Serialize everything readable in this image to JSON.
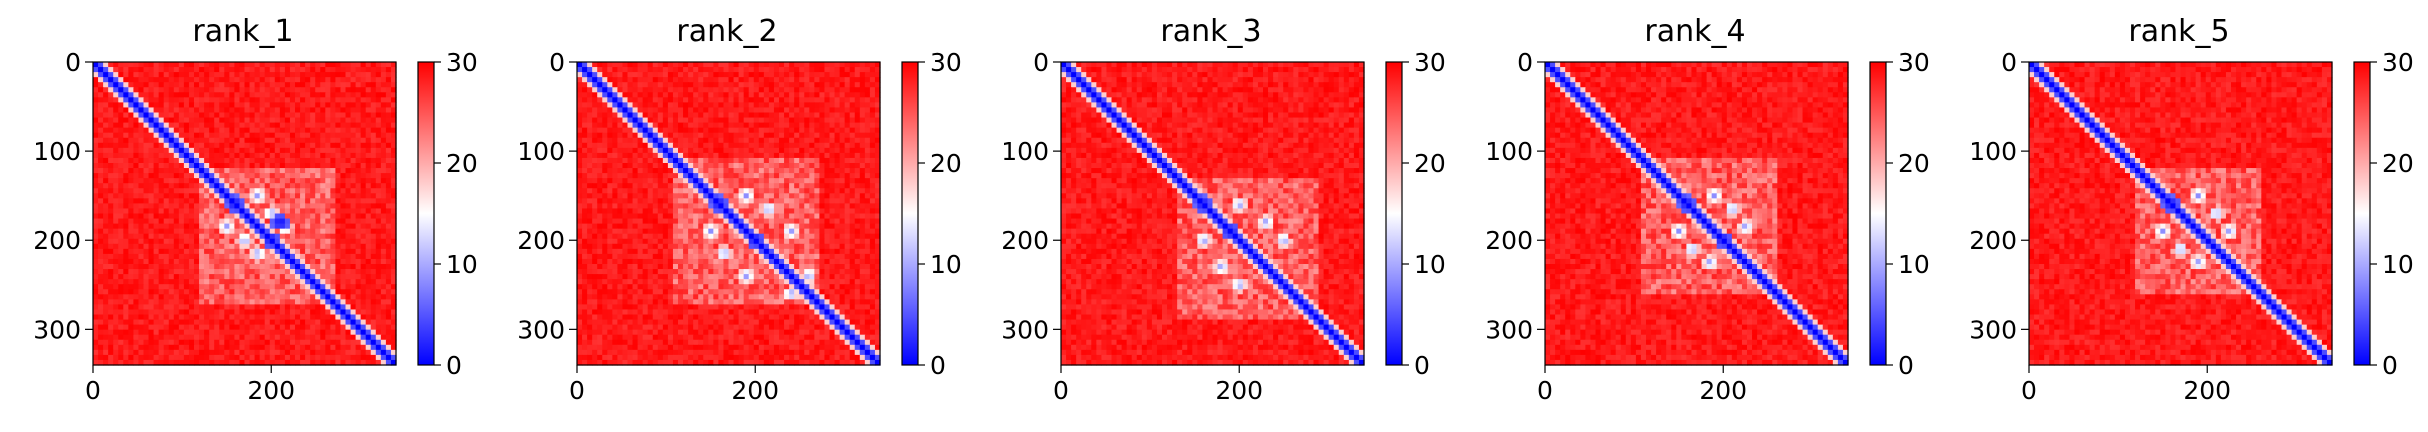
{
  "chart_data": [
    {
      "type": "heatmap",
      "title": "rank_1",
      "n_residues": 340,
      "x_ticks": [
        0,
        200
      ],
      "y_ticks": [
        0,
        100,
        200,
        300
      ],
      "colorbar": {
        "ticks": [
          0,
          10,
          20,
          30
        ],
        "vmin": 0,
        "vmax": 30,
        "colormap": "bwr"
      },
      "diagonal_value": 0,
      "background_value": 30,
      "core_region": [
        120,
        270
      ],
      "hotspots": [
        [
          160,
          160
        ],
        [
          200,
          200
        ],
        [
          180,
          210
        ]
      ],
      "off_diagonal_contacts": [
        [
          150,
          185
        ],
        [
          170,
          200
        ],
        [
          185,
          215
        ]
      ]
    },
    {
      "type": "heatmap",
      "title": "rank_2",
      "n_residues": 340,
      "x_ticks": [
        0,
        200
      ],
      "y_ticks": [
        0,
        100,
        200,
        300
      ],
      "colorbar": {
        "ticks": [
          0,
          10,
          20,
          30
        ],
        "vmin": 0,
        "vmax": 30,
        "colormap": "bwr"
      },
      "diagonal_value": 0,
      "background_value": 30,
      "core_region": [
        110,
        270
      ],
      "hotspots": [
        [
          160,
          160
        ],
        [
          200,
          200
        ]
      ],
      "off_diagonal_contacts": [
        [
          150,
          190
        ],
        [
          165,
          215
        ],
        [
          190,
          240
        ],
        [
          240,
          260
        ]
      ]
    },
    {
      "type": "heatmap",
      "title": "rank_3",
      "n_residues": 340,
      "x_ticks": [
        0,
        200
      ],
      "y_ticks": [
        0,
        100,
        200,
        300
      ],
      "colorbar": {
        "ticks": [
          0,
          10,
          20,
          30
        ],
        "vmin": 0,
        "vmax": 30,
        "colormap": "bwr"
      },
      "diagonal_value": 0,
      "background_value": 30,
      "core_region": [
        130,
        290
      ],
      "hotspots": [
        [
          160,
          160
        ],
        [
          190,
          190
        ]
      ],
      "off_diagonal_contacts": [
        [
          160,
          200
        ],
        [
          180,
          230
        ],
        [
          200,
          250
        ]
      ]
    },
    {
      "type": "heatmap",
      "title": "rank_4",
      "n_residues": 340,
      "x_ticks": [
        0,
        200
      ],
      "y_ticks": [
        0,
        100,
        200,
        300
      ],
      "colorbar": {
        "ticks": [
          0,
          10,
          20,
          30
        ],
        "vmin": 0,
        "vmax": 30,
        "colormap": "bwr"
      },
      "diagonal_value": 0,
      "background_value": 30,
      "core_region": [
        110,
        260
      ],
      "hotspots": [
        [
          160,
          160
        ],
        [
          200,
          200
        ]
      ],
      "off_diagonal_contacts": [
        [
          150,
          190
        ],
        [
          165,
          210
        ],
        [
          185,
          225
        ]
      ]
    },
    {
      "type": "heatmap",
      "title": "rank_5",
      "n_residues": 340,
      "x_ticks": [
        0,
        200
      ],
      "y_ticks": [
        0,
        100,
        200,
        300
      ],
      "colorbar": {
        "ticks": [
          0,
          10,
          20,
          30
        ],
        "vmin": 0,
        "vmax": 30,
        "colormap": "bwr"
      },
      "diagonal_value": 0,
      "background_value": 30,
      "core_region": [
        120,
        260
      ],
      "hotspots": [
        [
          160,
          160
        ]
      ],
      "off_diagonal_contacts": [
        [
          150,
          190
        ],
        [
          170,
          210
        ],
        [
          190,
          225
        ]
      ]
    }
  ]
}
